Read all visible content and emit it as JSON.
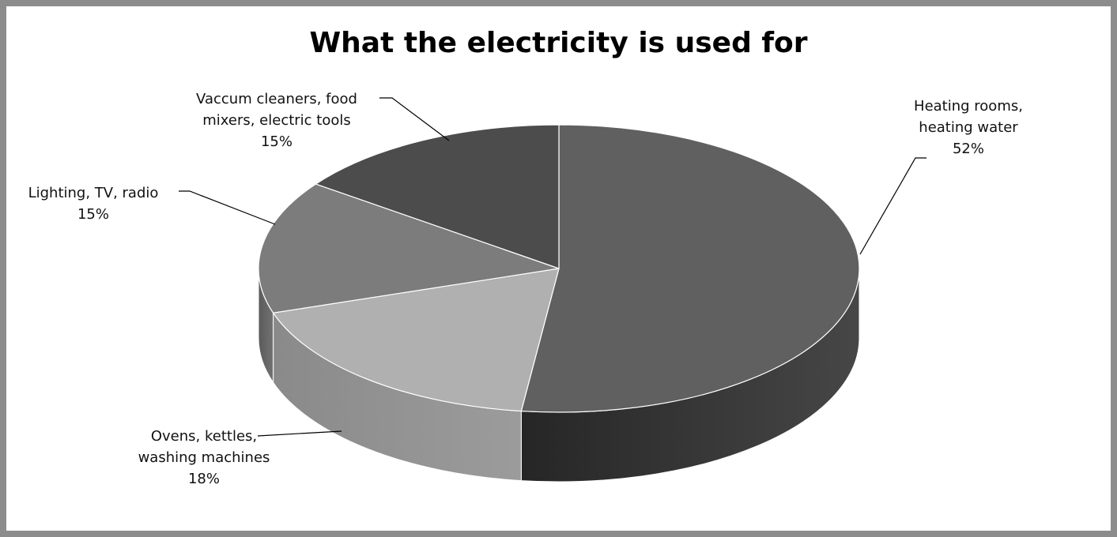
{
  "chart_data": {
    "type": "pie",
    "title": "What the electricity is used for",
    "three_d": true,
    "slices": [
      {
        "label_lines": [
          "Heating rooms,",
          "heating water"
        ],
        "value": 52,
        "value_label": "52%",
        "color": "#606060",
        "side_color": "#262626"
      },
      {
        "label_lines": [
          "Ovens, kettles,",
          "washing machines"
        ],
        "value": 18,
        "value_label": "18%",
        "color": "#b0b0b0",
        "side_color": "#8a8a8a"
      },
      {
        "label_lines": [
          "Lighting, TV, radio"
        ],
        "value": 15,
        "value_label": "15%",
        "color": "#7c7c7c",
        "side_color": "#5a5a5a"
      },
      {
        "label_lines": [
          "Vaccum cleaners, food",
          "mixers, electric tools"
        ],
        "value": 15,
        "value_label": "15%",
        "color": "#4c4c4c",
        "side_color": "#333333"
      }
    ]
  }
}
